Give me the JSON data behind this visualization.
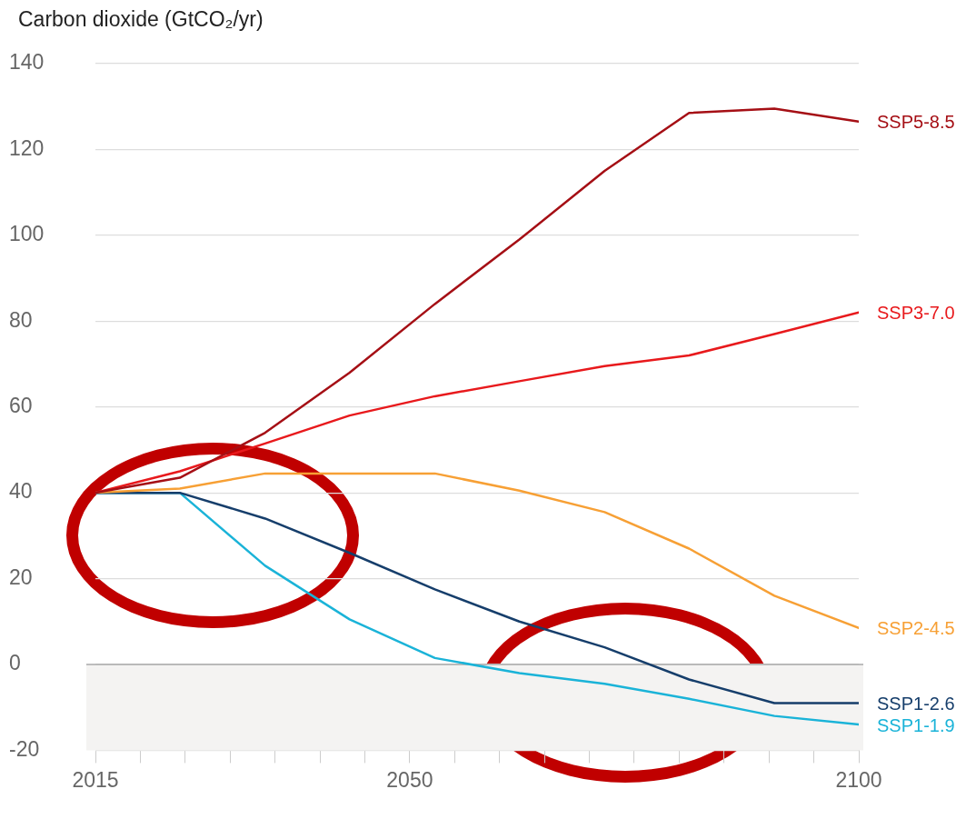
{
  "chart_data": {
    "type": "line",
    "ylabel": "Carbon dioxide (GtCO₂/yr)",
    "x": [
      2015,
      2024.4,
      2033.9,
      2043.3,
      2052.8,
      2062.2,
      2071.7,
      2081.1,
      2090.6,
      2100
    ],
    "series": [
      {
        "name": "SSP5-8.5",
        "color": "#a50f15",
        "values": [
          40,
          43.5,
          54,
          68,
          84,
          99,
          115,
          128.5,
          129.5,
          126.5
        ]
      },
      {
        "name": "SSP3-7.0",
        "color": "#e8191c",
        "values": [
          40,
          45,
          51.5,
          58,
          62.5,
          66,
          69.5,
          72,
          77,
          82
        ]
      },
      {
        "name": "SSP2-4.5",
        "color": "#f7a035",
        "values": [
          40,
          41,
          44.5,
          44.5,
          44.5,
          40.5,
          35.5,
          27,
          16,
          8.5
        ]
      },
      {
        "name": "SSP1-2.6",
        "color": "#163e6b",
        "values": [
          40,
          40,
          34,
          26,
          17.5,
          10,
          4,
          -3.5,
          -9,
          -9
        ]
      },
      {
        "name": "SSP1-1.9",
        "color": "#1ab3d8",
        "values": [
          40,
          40,
          23,
          10.5,
          1.5,
          -2,
          -4.5,
          -8,
          -12,
          -14
        ]
      }
    ],
    "xlim": [
      2015,
      2100
    ],
    "xticks": [
      2015,
      {
        "value": 2020,
        "label": null
      },
      {
        "value": 2025,
        "label": null
      },
      {
        "value": 2030,
        "label": null
      },
      {
        "value": 2035,
        "label": null
      },
      {
        "value": 2040,
        "label": null
      },
      {
        "value": 2045,
        "label": null
      },
      2050,
      {
        "value": 2055,
        "label": null
      },
      {
        "value": 2060,
        "label": null
      },
      {
        "value": 2065,
        "label": null
      },
      {
        "value": 2070,
        "label": null
      },
      {
        "value": 2075,
        "label": null
      },
      {
        "value": 2080,
        "label": null
      },
      {
        "value": 2085,
        "label": null
      },
      {
        "value": 2090,
        "label": null
      },
      {
        "value": 2095,
        "label": null
      },
      2100
    ],
    "ylim": [
      -20,
      140
    ],
    "yticks": [
      -20,
      0,
      20,
      40,
      60,
      80,
      100,
      120,
      140
    ],
    "grid": "y",
    "legend": false,
    "marker": "none",
    "line_style": "solid",
    "ref_lines": [
      {
        "axis": "y",
        "value": 0,
        "color": "#aaaaaa"
      }
    ],
    "bands": [
      {
        "axis": "y",
        "from": -20,
        "to": 0,
        "color": "#f4f3f2"
      }
    ]
  }
}
